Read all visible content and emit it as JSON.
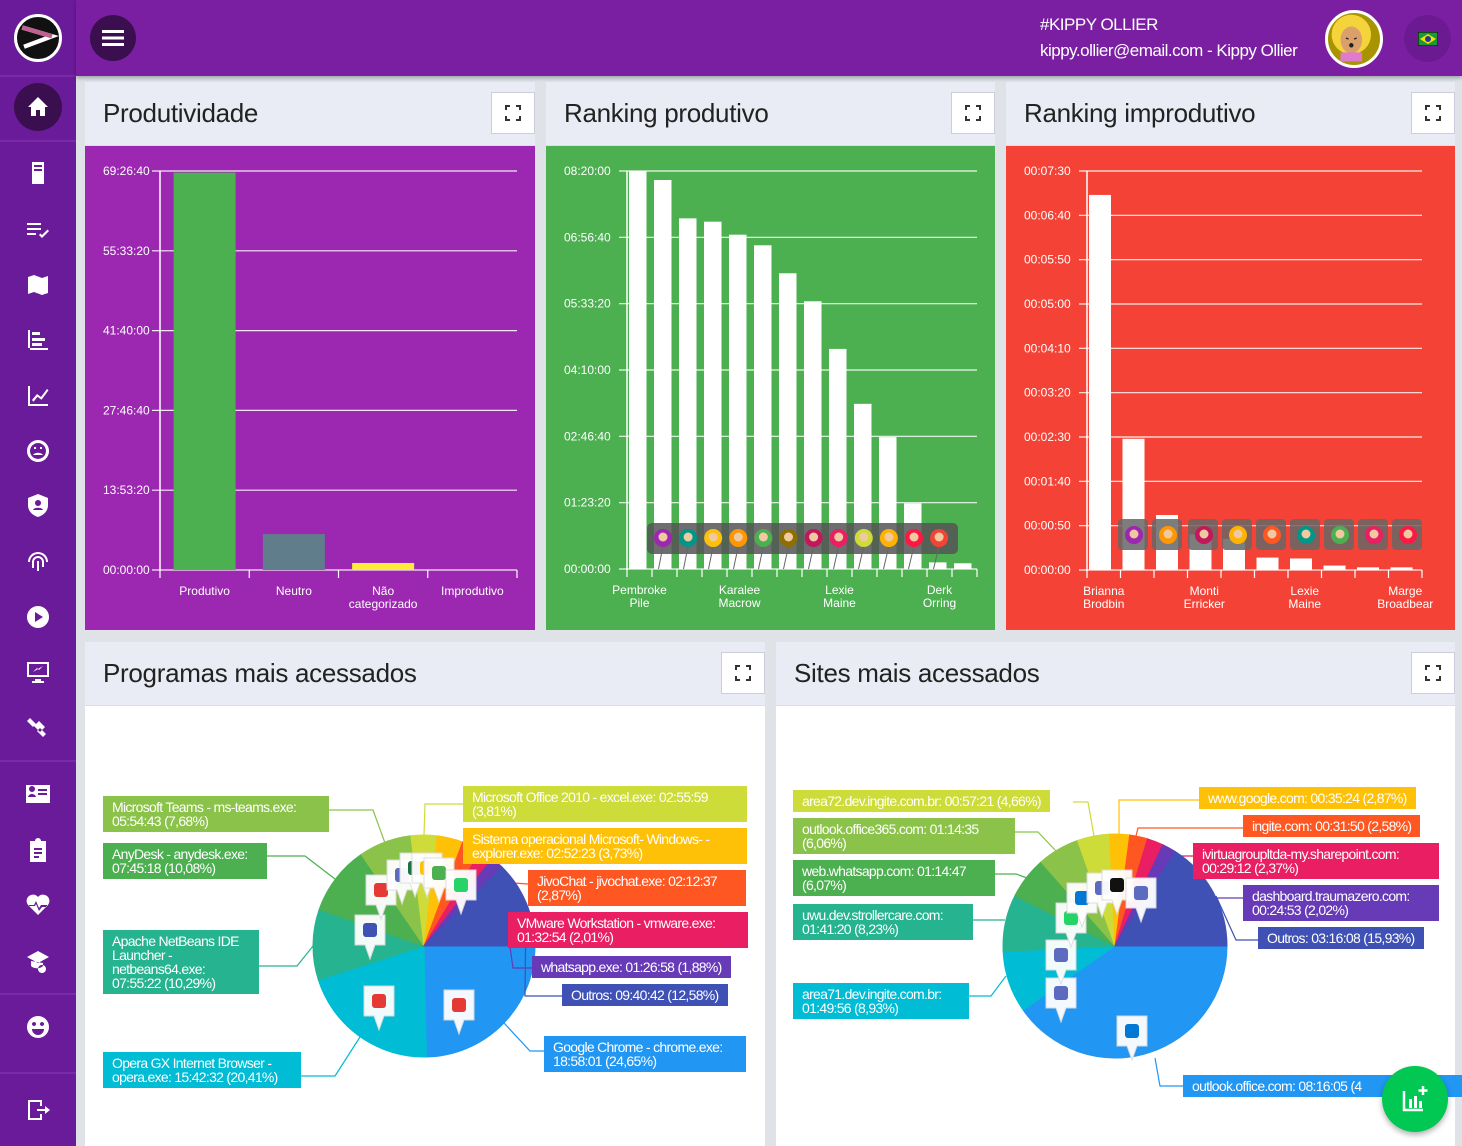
{
  "header": {
    "user_tag": "#KIPPY OLLIER",
    "user_line": "kippy.ollier@email.com - Kippy Ollier",
    "language_flag": "brazil-flag-icon"
  },
  "sidebar": {
    "items": [
      "home-icon",
      "server-icon",
      "checklist-icon",
      "map-icon",
      "bar-list-icon",
      "line-chart-icon",
      "gauge-icon",
      "user-shield-icon",
      "fingerprint-icon",
      "play-icon",
      "monitor-icon",
      "satellite-icon",
      "id-card-icon",
      "clipboard-icon",
      "heartbeat-icon",
      "search-school-icon",
      "emoji-icon",
      "logout-icon"
    ]
  },
  "panels": {
    "produtividade": {
      "title": "Produtividade",
      "color": "#9c27b0"
    },
    "ranking_produtivo": {
      "title": "Ranking produtivo",
      "color": "#4caf50"
    },
    "ranking_improdutivo": {
      "title": "Ranking improdutivo",
      "color": "#f44336"
    },
    "programas": {
      "title": "Programas mais acessados"
    },
    "sites": {
      "title": "Sites mais acessados"
    }
  },
  "chart_data": [
    {
      "type": "bar",
      "yticks": [
        "00:00:00",
        "13:53:20",
        "27:46:40",
        "41:40:00",
        "55:33:20",
        "69:26:40"
      ],
      "ylim": [
        0,
        250000
      ],
      "categories": [
        "Produtivo",
        "Neutro",
        "Não categorizado",
        "Improdutivo"
      ],
      "values": [
        249000,
        22500,
        4400,
        0
      ],
      "colors": [
        "#4caf50",
        "#607d8b",
        "#ffeb3b",
        "#f44336"
      ]
    },
    {
      "type": "bar",
      "yticks": [
        "00:00:00",
        "01:23:20",
        "02:46:40",
        "04:10:00",
        "05:33:20",
        "06:56:40",
        "08:20:00"
      ],
      "ylim": [
        0,
        30000
      ],
      "categories": [
        "Pembroke Pile",
        "",
        "",
        "",
        "Karalee Macrow",
        "",
        "",
        "",
        "Lexie Maine",
        "",
        "",
        "",
        "Derk Orring",
        ""
      ],
      "values": [
        30000,
        29320,
        26430,
        26180,
        25200,
        24400,
        22290,
        20180,
        16590,
        12450,
        9940,
        4950,
        500,
        430
      ]
    },
    {
      "type": "bar",
      "yticks": [
        "00:00:00",
        "00:00:50",
        "00:01:40",
        "00:02:30",
        "00:03:20",
        "00:04:10",
        "00:05:00",
        "00:05:50",
        "00:06:40",
        "00:07:30"
      ],
      "ylim": [
        0,
        450
      ],
      "categories": [
        "Brianna Brodbin",
        "",
        "",
        "Monti Erricker",
        "",
        "",
        "Lexie Maine",
        "",
        "",
        "Marge Broadbear"
      ],
      "values": [
        423,
        148,
        62,
        40,
        35,
        14,
        13,
        5,
        3,
        3
      ]
    },
    {
      "type": "pie",
      "slices": [
        {
          "label": "Google Chrome - chrome.exe: 18:58:01 (24,65%)",
          "value": 24.65,
          "color": "#2196f3"
        },
        {
          "label": "Opera GX Internet Browser - opera.exe: 15:42:32 (20,41%)",
          "value": 20.41,
          "color": "#00bcd4"
        },
        {
          "label": "Apache NetBeans IDE Launcher - netbeans64.exe: 07:55:22 (10,29%)",
          "value": 10.29,
          "color": "#26b38f"
        },
        {
          "label": "AnyDesk - anydesk.exe: 07:45:18 (10,08%)",
          "value": 10.08,
          "color": "#4caf50"
        },
        {
          "label": "Microsoft Teams - ms-teams.exe: 05:54:43 (7,68%)",
          "value": 7.68,
          "color": "#8bc34a"
        },
        {
          "label": "Microsoft Office 2010 - excel.exe: 02:55:59 (3,81%)",
          "value": 3.81,
          "color": "#cddc39"
        },
        {
          "label": "Sistema operacional Microsoft- Windows- - explorer.exe: 02:52:23 (3,73%)",
          "value": 3.73,
          "color": "#ffc107"
        },
        {
          "label": "JivoChat - jivochat.exe: 02:12:37 (2,87%)",
          "value": 2.87,
          "color": "#ff5722"
        },
        {
          "label": "VMware Workstation - vmware.exe: 01:32:54 (2,01%)",
          "value": 2.01,
          "color": "#e91e63"
        },
        {
          "label": "whatsapp.exe: 01:26:58 (1,88%)",
          "value": 1.88,
          "color": "#673ab7"
        },
        {
          "label": "Outros: 09:40:42 (12,58%)",
          "value": 12.58,
          "color": "#3f51b5"
        }
      ]
    },
    {
      "type": "pie",
      "slices": [
        {
          "label": "outlook.office.com: 08:16:05 (4",
          "value": 40.28,
          "color": "#2196f3"
        },
        {
          "label": "area71.dev.ingite.com.br: 01:49:56 (8,93%)",
          "value": 8.93,
          "color": "#00bcd4"
        },
        {
          "label": "uwu.dev.strollercare.com: 01:41:20 (8,23%)",
          "value": 8.23,
          "color": "#26b38f"
        },
        {
          "label": "web.whatsapp.com: 01:14:47 (6,07%)",
          "value": 6.07,
          "color": "#4caf50"
        },
        {
          "label": "outlook.office365.com: 01:14:35 (6,06%)",
          "value": 6.06,
          "color": "#8bc34a"
        },
        {
          "label": "area72.dev.ingite.com.br: 00:57:21 (4,66%)",
          "value": 4.66,
          "color": "#cddc39"
        },
        {
          "label": "www.google.com: 00:35:24 (2,87%)",
          "value": 2.87,
          "color": "#ffc107"
        },
        {
          "label": "ingite.com: 00:31:50 (2,58%)",
          "value": 2.58,
          "color": "#ff5722"
        },
        {
          "label": "ivirtuagroupltda-my.sharepoint.com: 00:29:12 (2,37%)",
          "value": 2.37,
          "color": "#e91e63"
        },
        {
          "label": "dashboard.traumazero.com: 00:24:53 (2,02%)",
          "value": 2.02,
          "color": "#673ab7"
        },
        {
          "label": "Outros: 03:16:08 (15,93%)",
          "value": 15.93,
          "color": "#3f51b5"
        }
      ]
    }
  ]
}
